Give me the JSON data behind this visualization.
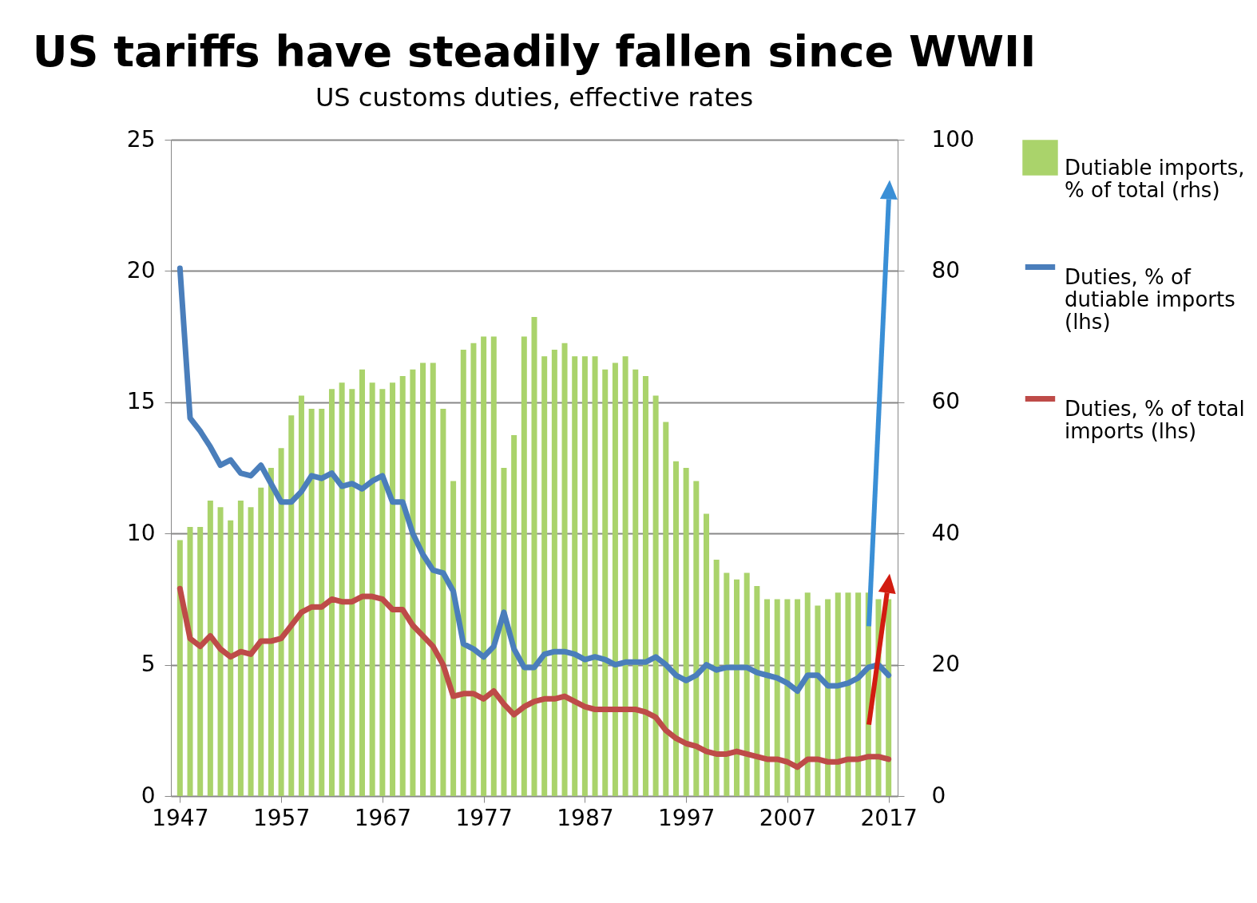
{
  "chart_data": {
    "type": "line",
    "title": "US tariffs have steadily fallen since WWII",
    "subtitle": "US customs duties, effective rates",
    "x": [
      1947,
      1948,
      1949,
      1950,
      1951,
      1952,
      1953,
      1954,
      1955,
      1956,
      1957,
      1958,
      1959,
      1960,
      1961,
      1962,
      1963,
      1964,
      1965,
      1966,
      1967,
      1968,
      1969,
      1970,
      1971,
      1972,
      1973,
      1974,
      1975,
      1976,
      1977,
      1978,
      1979,
      1980,
      1981,
      1982,
      1983,
      1984,
      1985,
      1986,
      1987,
      1988,
      1989,
      1990,
      1991,
      1992,
      1993,
      1994,
      1995,
      1996,
      1997,
      1998,
      1999,
      2000,
      2001,
      2002,
      2003,
      2004,
      2005,
      2006,
      2007,
      2008,
      2009,
      2010,
      2011,
      2012,
      2013,
      2014,
      2015,
      2016,
      2017
    ],
    "series": [
      {
        "name": "Dutiable imports, % of total (rhs)",
        "type": "bar",
        "axis": "y2",
        "color": "#aad36b",
        "values": [
          39,
          41,
          41,
          45,
          44,
          42,
          45,
          44,
          47,
          50,
          53,
          58,
          61,
          59,
          59,
          62,
          63,
          62,
          65,
          63,
          62,
          63,
          64,
          65,
          66,
          66,
          59,
          48,
          68,
          69,
          70,
          70,
          50,
          55,
          70,
          73,
          67,
          68,
          69,
          67,
          67,
          67,
          65,
          66,
          67,
          65,
          64,
          61,
          57,
          51,
          50,
          48,
          43,
          36,
          34,
          33,
          34,
          32,
          30,
          30,
          30,
          30,
          31,
          29,
          30,
          31,
          31,
          31,
          31,
          30,
          30
        ]
      },
      {
        "name": "Duties, % of dutiable imports (lhs)",
        "color": "#4a7ebb",
        "values": [
          20.1,
          14.4,
          13.9,
          13.3,
          12.6,
          12.8,
          12.3,
          12.2,
          12.6,
          11.9,
          11.2,
          11.2,
          11.6,
          12.2,
          12.1,
          12.3,
          11.8,
          11.9,
          11.7,
          12.0,
          12.2,
          11.2,
          11.2,
          10.0,
          9.2,
          8.6,
          8.5,
          7.8,
          5.8,
          5.6,
          5.3,
          5.7,
          7.0,
          5.6,
          4.9,
          4.9,
          5.4,
          5.5,
          5.5,
          5.4,
          5.2,
          5.3,
          5.2,
          5.0,
          5.1,
          5.1,
          5.1,
          5.3,
          5.0,
          4.6,
          4.4,
          4.6,
          5.0,
          4.8,
          4.9,
          4.9,
          4.9,
          4.7,
          4.6,
          4.5,
          4.3,
          4.0,
          4.6,
          4.6,
          4.2,
          4.2,
          4.3,
          4.5,
          4.9,
          5.0,
          4.6
        ]
      },
      {
        "name": "Duties, % of total imports (lhs)",
        "color": "#be4b48",
        "values": [
          7.9,
          6.0,
          5.7,
          6.1,
          5.6,
          5.3,
          5.5,
          5.4,
          5.9,
          5.9,
          6.0,
          6.5,
          7.0,
          7.2,
          7.2,
          7.5,
          7.4,
          7.4,
          7.6,
          7.6,
          7.5,
          7.1,
          7.1,
          6.5,
          6.1,
          5.7,
          5.0,
          3.8,
          3.9,
          3.9,
          3.7,
          4.0,
          3.5,
          3.1,
          3.4,
          3.6,
          3.7,
          3.7,
          3.8,
          3.6,
          3.4,
          3.3,
          3.3,
          3.3,
          3.3,
          3.3,
          3.2,
          3.0,
          2.5,
          2.2,
          2.0,
          1.9,
          1.7,
          1.6,
          1.6,
          1.7,
          1.6,
          1.5,
          1.4,
          1.4,
          1.3,
          1.1,
          1.4,
          1.4,
          1.3,
          1.3,
          1.4,
          1.4,
          1.5,
          1.5,
          1.4
        ]
      }
    ],
    "xlim": [
      1946.5,
      2017.5
    ],
    "xticks": [
      1947,
      1957,
      1967,
      1977,
      1987,
      1997,
      2007,
      2017
    ],
    "ylim": [
      0,
      25
    ],
    "yticks": [
      0,
      5,
      10,
      15,
      20,
      25
    ],
    "y2lim": [
      0,
      100
    ],
    "y2ticks": [
      0,
      20,
      40,
      60,
      80,
      100
    ],
    "grid": "y",
    "legend": "right"
  }
}
